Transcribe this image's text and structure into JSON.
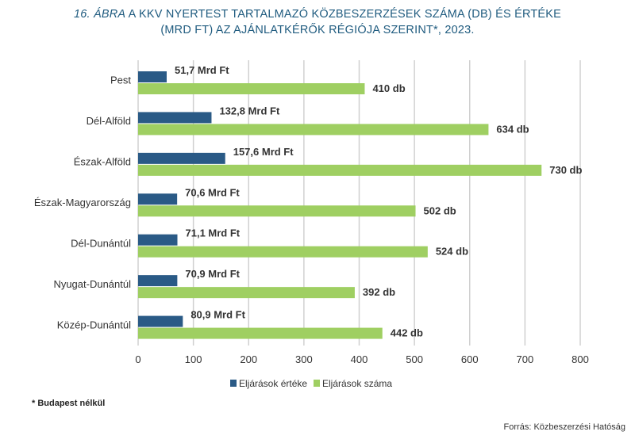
{
  "title": {
    "lead": "16. ÁBRA",
    "line1_rest": " A KKV NYERTEST TARTALMAZÓ KÖZBESZERZÉSEK SZÁMA (DB) ÉS ÉRTÉKE",
    "line2": "(MRD FT) AZ AJÁNLATKÉRŐK RÉGIÓJA SZERINT*, 2023."
  },
  "footnote": "*  Budapest nélkül",
  "source": "Forrás: Közbeszerzési Hatóság",
  "colors": {
    "value_series": "#2a5a86",
    "count_series": "#9fcf62",
    "grid": "#d0d0d0",
    "text": "#333333"
  },
  "chart_data": {
    "type": "bar",
    "orientation": "horizontal",
    "categories": [
      "Pest",
      "Dél-Alföld",
      "Észak-Alföld",
      "Észak-Magyarország",
      "Dél-Dunántúl",
      "Nyugat-Dunántúl",
      "Közép-Dunántúl"
    ],
    "series": [
      {
        "name": "Eljárások értéke",
        "values": [
          51.7,
          132.8,
          157.6,
          70.6,
          71.1,
          70.9,
          80.9
        ],
        "labels": [
          "51,7 Mrd Ft",
          "132,8 Mrd Ft",
          "157,6 Mrd Ft",
          "70,6 Mrd Ft",
          "71,1 Mrd Ft",
          "70,9 Mrd Ft",
          "80,9 Mrd Ft"
        ]
      },
      {
        "name": "Eljárások száma",
        "values": [
          410,
          634,
          730,
          502,
          524,
          392,
          442
        ],
        "labels": [
          "410 db",
          "634 db",
          "730 db",
          "502 db",
          "524 db",
          "392 db",
          "442 db"
        ]
      }
    ],
    "xlim": [
      0,
      800
    ],
    "xticks": [
      0,
      100,
      200,
      300,
      400,
      500,
      600,
      700,
      800
    ],
    "grid": true,
    "legend": "bottom"
  }
}
